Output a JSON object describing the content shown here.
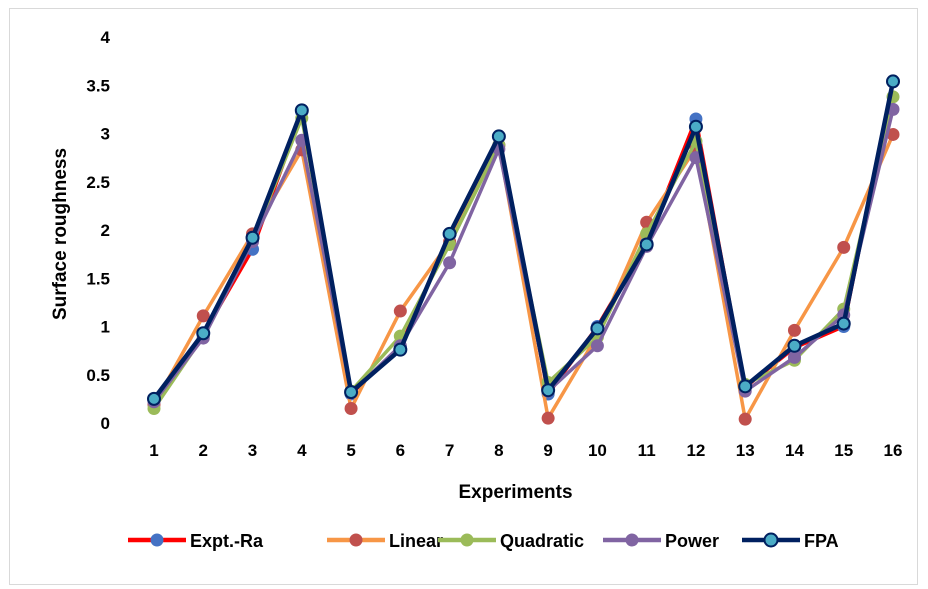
{
  "chart_data": {
    "type": "line",
    "title": "",
    "xlabel": "Experiments",
    "ylabel": "Surface roughness",
    "x": [
      "1",
      "2",
      "3",
      "4",
      "5",
      "6",
      "7",
      "8",
      "9",
      "10",
      "11",
      "12",
      "13",
      "14",
      "15",
      "16"
    ],
    "ylim": [
      0,
      4
    ],
    "yticks": [
      "0",
      "0.5",
      "1",
      "1.5",
      "2",
      "2.5",
      "3",
      "3.5",
      "4"
    ],
    "grid": false,
    "legend_position": "bottom",
    "series": [
      {
        "name": "Expt.-Ra",
        "line_color": "#ff0000",
        "marker_color": "#4472c4",
        "values": [
          0.25,
          0.92,
          1.8,
          3.22,
          0.3,
          0.79,
          1.95,
          2.97,
          0.3,
          1.0,
          1.87,
          3.15,
          0.37,
          0.78,
          1.0,
          3.54
        ]
      },
      {
        "name": "Linear",
        "line_color": "#f79646",
        "marker_color": "#c0504d",
        "values": [
          0.19,
          1.11,
          1.96,
          2.83,
          0.15,
          1.16,
          1.88,
          2.88,
          0.05,
          0.91,
          2.08,
          2.85,
          0.04,
          0.96,
          1.82,
          2.99
        ]
      },
      {
        "name": "Quadratic",
        "line_color": "#9bbb59",
        "marker_color": "#9bbb59",
        "values": [
          0.15,
          0.9,
          1.9,
          3.16,
          0.33,
          0.9,
          1.85,
          2.88,
          0.42,
          0.89,
          1.96,
          2.92,
          0.4,
          0.65,
          1.18,
          3.38
        ]
      },
      {
        "name": "Power",
        "line_color": "#8064a2",
        "marker_color": "#8064a2",
        "values": [
          0.22,
          0.88,
          1.88,
          2.93,
          0.31,
          0.8,
          1.66,
          2.84,
          0.33,
          0.8,
          1.83,
          2.75,
          0.33,
          0.68,
          1.12,
          3.25
        ]
      },
      {
        "name": "FPA",
        "line_color": "#002060",
        "marker_color": "#4bacc6",
        "marker_edge": "#002060",
        "values": [
          0.25,
          0.93,
          1.92,
          3.24,
          0.32,
          0.76,
          1.96,
          2.97,
          0.34,
          0.98,
          1.85,
          3.07,
          0.38,
          0.8,
          1.03,
          3.54
        ]
      }
    ]
  }
}
